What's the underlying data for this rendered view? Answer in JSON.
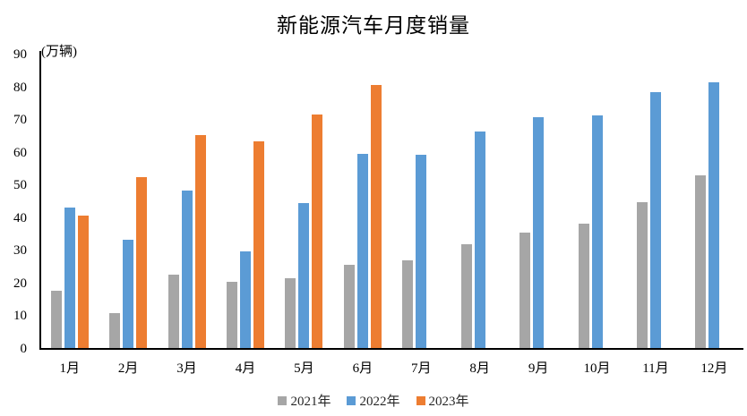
{
  "chart_data": {
    "type": "bar",
    "title": "新能源汽车月度销量",
    "unit_label": "(万辆)",
    "xlabel": "",
    "ylabel": "(万辆)",
    "categories": [
      "1月",
      "2月",
      "3月",
      "4月",
      "5月",
      "6月",
      "7月",
      "8月",
      "9月",
      "10月",
      "11月",
      "12月"
    ],
    "series": [
      {
        "name": "2021年",
        "color": "#A6A6A6",
        "values": [
          17.9,
          11.0,
          22.6,
          20.6,
          21.7,
          25.6,
          27.1,
          32.1,
          35.7,
          38.3,
          45.0,
          53.1
        ]
      },
      {
        "name": "2022年",
        "color": "#5B9BD5",
        "values": [
          43.1,
          33.4,
          48.4,
          29.9,
          44.7,
          59.6,
          59.3,
          66.6,
          70.8,
          71.4,
          78.6,
          81.4
        ]
      },
      {
        "name": "2023年",
        "color": "#ED7D31",
        "values": [
          40.8,
          52.5,
          65.3,
          63.6,
          71.7,
          80.6,
          null,
          null,
          null,
          null,
          null,
          null
        ]
      }
    ],
    "ylim": [
      0,
      90
    ],
    "y_ticks": [
      0,
      10,
      20,
      30,
      40,
      50,
      60,
      70,
      80,
      90
    ],
    "grid": false,
    "legend_position": "bottom",
    "axis_color": "#000000",
    "background_color": "#ffffff"
  }
}
